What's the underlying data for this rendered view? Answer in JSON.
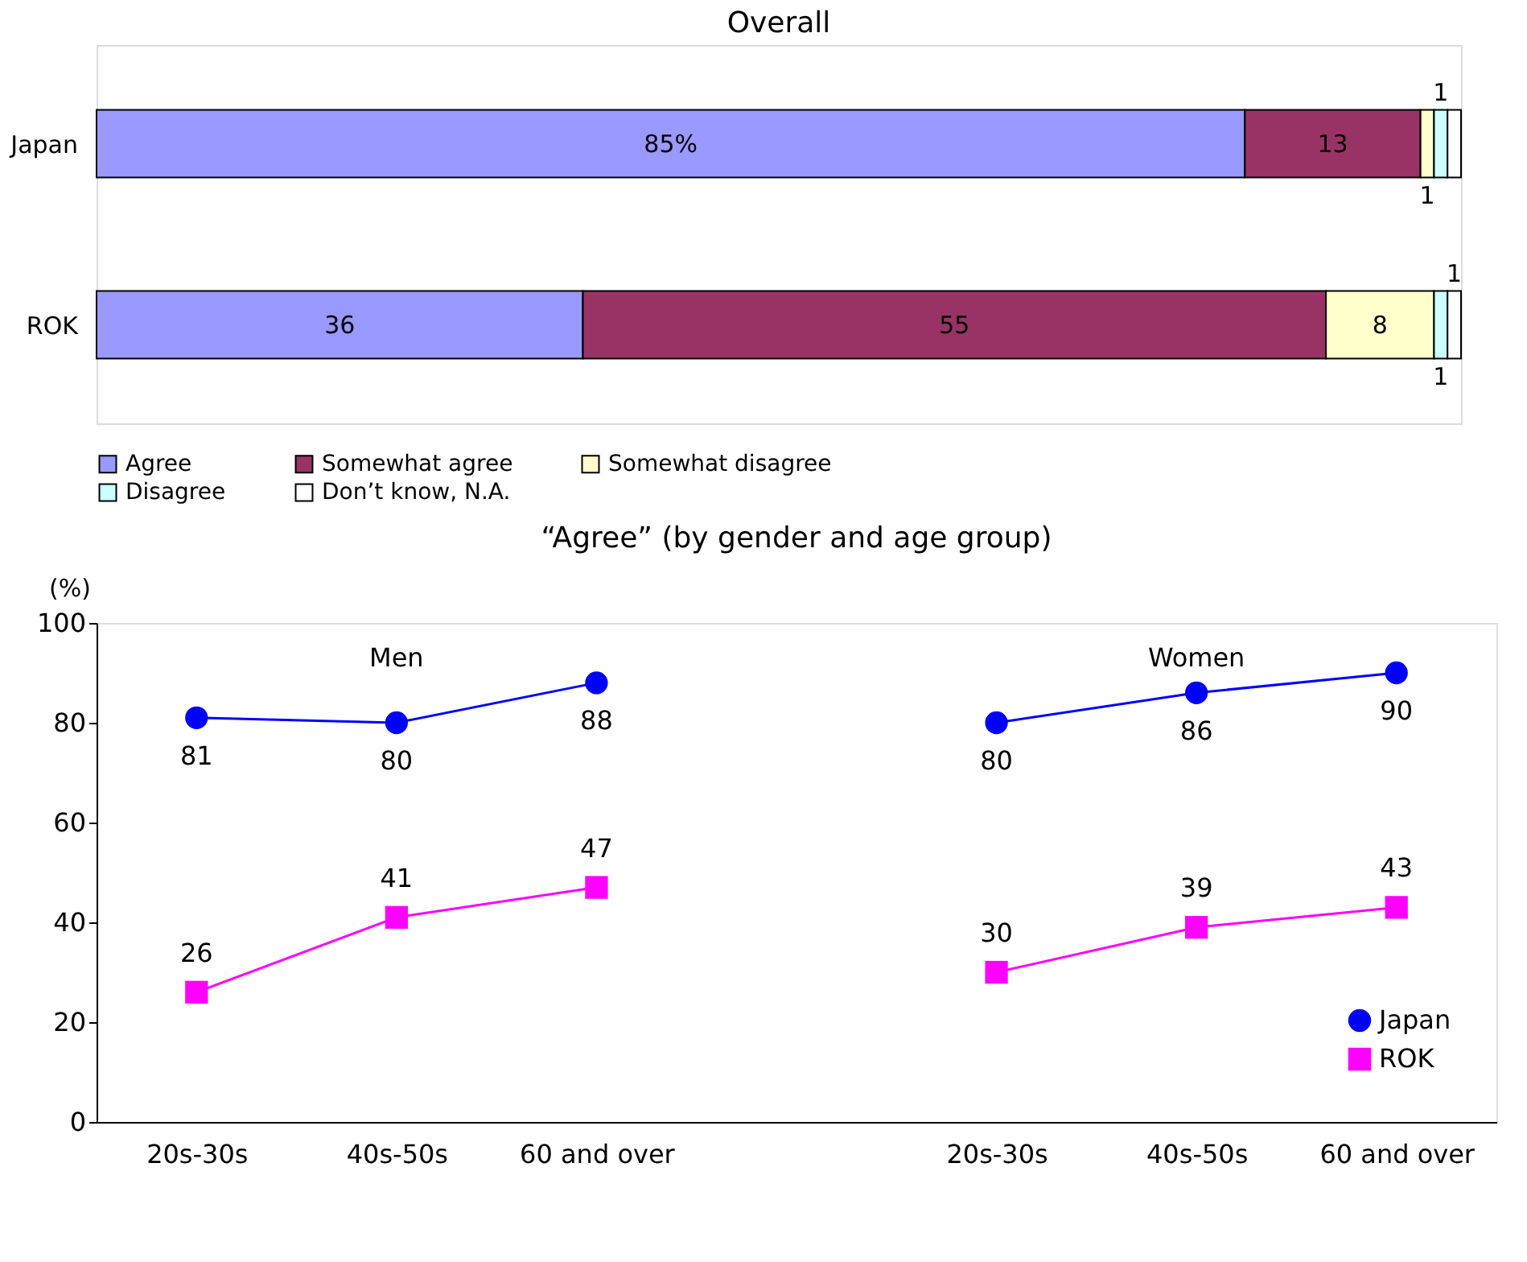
{
  "chart_data": [
    {
      "type": "bar",
      "title": "Overall",
      "orientation": "horizontal",
      "stacked": true,
      "categories": [
        "Japan",
        "ROK"
      ],
      "xlim": [
        0,
        101
      ],
      "legend": "bottom",
      "tick_labels": "y",
      "series": [
        {
          "name": "Agree",
          "color": "#9999ff",
          "values": [
            85,
            36
          ],
          "value_labels": [
            "85%",
            "36"
          ]
        },
        {
          "name": "Somewhat agree",
          "color": "#993366",
          "values": [
            13,
            55
          ],
          "value_labels": [
            "13",
            "55"
          ]
        },
        {
          "name": "Somewhat disagree",
          "color": "#ffffcc",
          "values": [
            1,
            8
          ],
          "value_labels": [
            "1",
            "8"
          ]
        },
        {
          "name": "Disagree",
          "color": "#ccffff",
          "values": [
            1,
            1
          ],
          "value_labels": [
            "1",
            "1"
          ]
        },
        {
          "name": "Don’t know, N.A.",
          "color": "#ffffff",
          "values": [
            1,
            1
          ],
          "value_labels": [
            null,
            "1"
          ]
        }
      ]
    },
    {
      "type": "line",
      "title": "“Agree” (by gender and age group)",
      "ylabel": "(%)",
      "categories": [
        "20s-30s",
        "40s-50s",
        "60 and over",
        null,
        "20s-30s",
        "40s-50s",
        "60 and over"
      ],
      "ylim": [
        0,
        100
      ],
      "yticks": [
        0,
        20,
        40,
        60,
        80,
        100
      ],
      "grid": false,
      "legend": "bottom right",
      "data_labels": true,
      "annotations": [
        "Men",
        "Women"
      ],
      "series": [
        {
          "name": "Japan",
          "color": "#0000ff",
          "marker": "circle",
          "values": [
            81,
            80,
            88,
            null,
            80,
            86,
            90
          ]
        },
        {
          "name": "ROK",
          "color": "#ff00ff",
          "marker": "square",
          "values": [
            26,
            41,
            47,
            null,
            30,
            39,
            43
          ]
        }
      ]
    }
  ]
}
